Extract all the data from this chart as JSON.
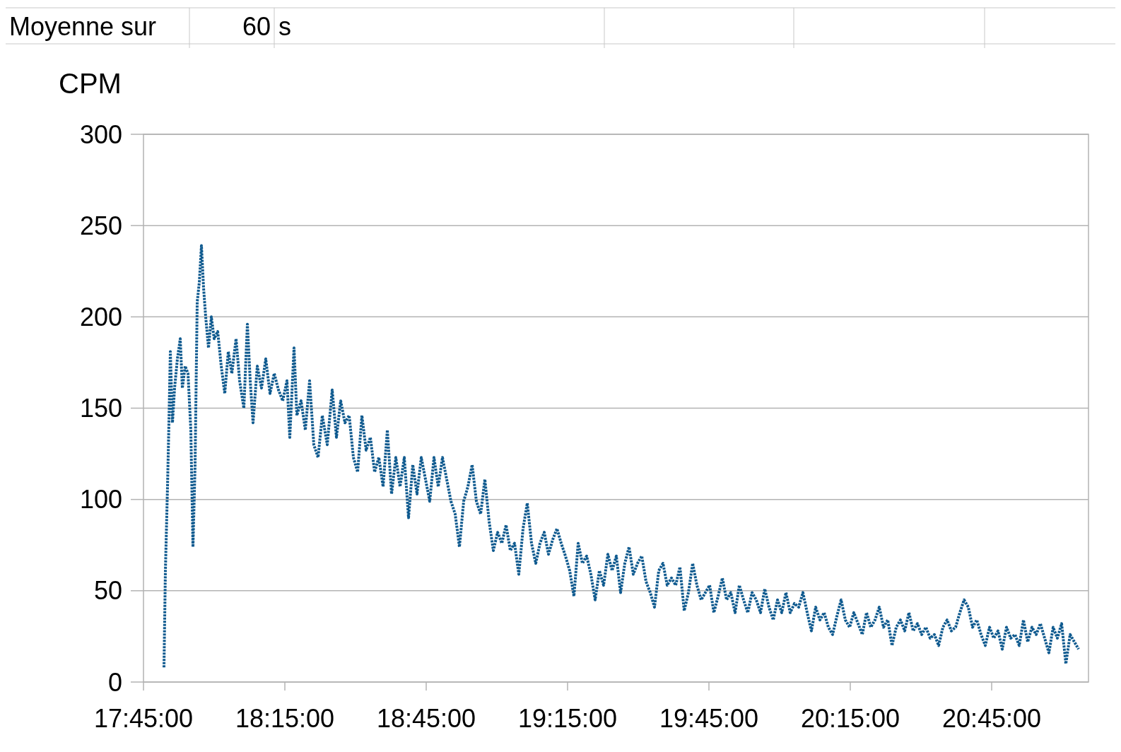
{
  "chart_data": {
    "type": "line",
    "ylabel": "CPM",
    "annotations": [
      "Moyenne sur",
      "60",
      "s"
    ],
    "xlim": [
      17.75,
      21.0925
    ],
    "ylim": [
      0,
      300
    ],
    "xticks": [
      {
        "value": 17.75,
        "label": "17:45:00"
      },
      {
        "value": 18.25,
        "label": "18:15:00"
      },
      {
        "value": 18.75,
        "label": "18:45:00"
      },
      {
        "value": 19.25,
        "label": "19:15:00"
      },
      {
        "value": 19.75,
        "label": "19:45:00"
      },
      {
        "value": 20.25,
        "label": "20:15:00"
      },
      {
        "value": 20.75,
        "label": "20:45:00"
      }
    ],
    "yticks": [
      0,
      50,
      100,
      150,
      200,
      250,
      300
    ],
    "grid": "y",
    "marker": "none",
    "line_style": "dotted",
    "series": [
      {
        "color": "#0f5a8f",
        "x": [
          17.8225,
          17.8275,
          17.835,
          17.84,
          17.845,
          17.8525,
          17.86,
          17.87,
          17.88,
          17.8875,
          17.8975,
          17.9075,
          17.9175,
          17.925,
          17.9325,
          17.94,
          17.9475,
          17.955,
          17.9625,
          17.97,
          17.98,
          17.99,
          18.0,
          18.0125,
          18.025,
          18.0375,
          18.05,
          18.0625,
          18.0775,
          18.09,
          18.105,
          18.1175,
          18.1275,
          18.1375,
          18.1525,
          18.1675,
          18.1825,
          18.1975,
          18.2125,
          18.2275,
          18.2425,
          18.2575,
          18.2675,
          18.2825,
          18.2925,
          18.3075,
          18.3225,
          18.3375,
          18.3525,
          18.3675,
          18.3825,
          18.4,
          18.4175,
          18.4325,
          18.4475,
          18.4625,
          18.4775,
          18.4925,
          18.5075,
          18.5225,
          18.5375,
          18.5525,
          18.5675,
          18.5825,
          18.5975,
          18.6125,
          18.6275,
          18.6425,
          18.6575,
          18.6725,
          18.6875,
          18.7025,
          18.7175,
          18.7325,
          18.7475,
          18.7625,
          18.7775,
          18.7925,
          18.8075,
          18.8225,
          18.8375,
          18.8525,
          18.8675,
          18.8825,
          18.8975,
          18.9125,
          18.9275,
          18.9425,
          18.9575,
          18.9725,
          18.9875,
          19.0025,
          19.0175,
          19.0325,
          19.0475,
          19.0625,
          19.0775,
          19.0925,
          19.1075,
          19.1225,
          19.1375,
          19.1525,
          19.1675,
          19.1825,
          19.1975,
          19.2125,
          19.2275,
          19.2425,
          19.2575,
          19.2725,
          19.2875,
          19.3025,
          19.3175,
          19.3325,
          19.3475,
          19.3625,
          19.3775,
          19.3925,
          19.4075,
          19.4225,
          19.4375,
          19.4525,
          19.4675,
          19.4825,
          19.4975,
          19.5125,
          19.5275,
          19.5425,
          19.5575,
          19.5725,
          19.5875,
          19.6025,
          19.6175,
          19.6325,
          19.6475,
          19.6625,
          19.6775,
          19.6925,
          19.7075,
          19.7225,
          19.7375,
          19.7525,
          19.7675,
          19.7825,
          19.7975,
          19.8125,
          19.8275,
          19.8425,
          19.8575,
          19.8725,
          19.8875,
          19.9025,
          19.9175,
          19.9325,
          19.9475,
          19.9625,
          19.9775,
          19.9925,
          20.0075,
          20.0225,
          20.0375,
          20.0525,
          20.0675,
          20.0825,
          20.0975,
          20.1125,
          20.1275,
          20.1425,
          20.1575,
          20.1725,
          20.1875,
          20.2025,
          20.2175,
          20.2325,
          20.2475,
          20.2625,
          20.2775,
          20.2925,
          20.3075,
          20.3225,
          20.3375,
          20.3525,
          20.3675,
          20.3825,
          20.3975,
          20.4125,
          20.4275,
          20.4425,
          20.4575,
          20.4725,
          20.4875,
          20.5025,
          20.5175,
          20.5325,
          20.5475,
          20.5625,
          20.5775,
          20.5925,
          20.6075,
          20.6225,
          20.6375,
          20.6525,
          20.6675,
          20.6825,
          20.6975,
          20.7125,
          20.7275,
          20.7425,
          20.7575,
          20.7725,
          20.7875,
          20.8025,
          20.8175,
          20.8325,
          20.8475,
          20.8625,
          20.8775,
          20.8925,
          20.9075,
          20.9225,
          20.9375,
          20.9525,
          20.9675,
          20.9825,
          20.9975,
          21.0125,
          21.0275,
          21.0425,
          21.0575
        ],
        "values": [
          8,
          61,
          107,
          142,
          181,
          142,
          161,
          177,
          188,
          161,
          173,
          169,
          138,
          74,
          119,
          208,
          219,
          239,
          216,
          200,
          183,
          200,
          188,
          192,
          173,
          158,
          181,
          169,
          188,
          165,
          150,
          196,
          165,
          142,
          173,
          161,
          177,
          158,
          169,
          160,
          154,
          165,
          134,
          183,
          146,
          154,
          138,
          165,
          130,
          123,
          146,
          130,
          160,
          134,
          154,
          142,
          146,
          123,
          115,
          146,
          127,
          134,
          115,
          123,
          107,
          138,
          103,
          123,
          107,
          123,
          90,
          119,
          103,
          123,
          111,
          99,
          123,
          107,
          123,
          111,
          99,
          92,
          74,
          99,
          107,
          119,
          99,
          92,
          111,
          88,
          72,
          82,
          76,
          86,
          72,
          76,
          59,
          84,
          98,
          76,
          65,
          76,
          82,
          70,
          78,
          84,
          76,
          69,
          61,
          47,
          76,
          65,
          69,
          59,
          45,
          61,
          53,
          70,
          61,
          69,
          49,
          65,
          74,
          59,
          65,
          69,
          55,
          49,
          41,
          61,
          65,
          53,
          57,
          53,
          63,
          39,
          49,
          65,
          53,
          45,
          49,
          53,
          38,
          47,
          57,
          45,
          49,
          38,
          53,
          45,
          38,
          49,
          45,
          38,
          51,
          41,
          34,
          45,
          38,
          49,
          38,
          43,
          41,
          49,
          38,
          28,
          41,
          34,
          38,
          30,
          26,
          36,
          45,
          34,
          30,
          38,
          32,
          26,
          38,
          30,
          34,
          41,
          30,
          34,
          20,
          30,
          34,
          28,
          38,
          28,
          32,
          26,
          30,
          24,
          26,
          20,
          30,
          34,
          28,
          30,
          38,
          45,
          41,
          30,
          34,
          26,
          20,
          30,
          24,
          28,
          18,
          30,
          24,
          26,
          20,
          34,
          22,
          30,
          26,
          32,
          24,
          16,
          30,
          24,
          32,
          10,
          26,
          22,
          18
        ]
      }
    ]
  }
}
